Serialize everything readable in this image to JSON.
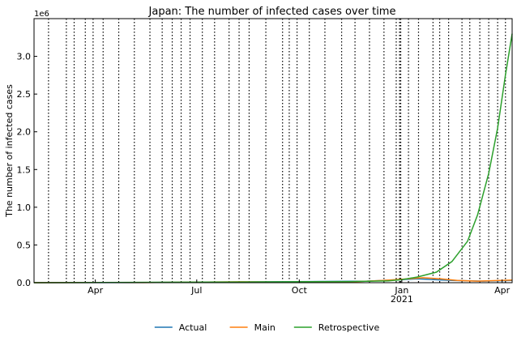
{
  "chart_data": {
    "type": "line",
    "title": "Japan: The number of infected cases over time",
    "ylabel": "The number of infected cases",
    "xlabel": "",
    "y_offset_label": "1e6",
    "ylim": [
      0,
      3.5
    ],
    "xlim": [
      "2020-02-06",
      "2021-04-10"
    ],
    "y_ticks": [
      {
        "value": 0.0,
        "label": "0.0"
      },
      {
        "value": 0.5,
        "label": "0.5"
      },
      {
        "value": 1.0,
        "label": "1.0"
      },
      {
        "value": 1.5,
        "label": "1.5"
      },
      {
        "value": 2.0,
        "label": "2.0"
      },
      {
        "value": 2.5,
        "label": "2.5"
      },
      {
        "value": 3.0,
        "label": "3.0"
      }
    ],
    "x_ticks": [
      {
        "date": "2020-04-01",
        "label": "Apr",
        "label2": ""
      },
      {
        "date": "2020-07-01",
        "label": "Jul",
        "label2": ""
      },
      {
        "date": "2020-10-01",
        "label": "Oct",
        "label2": ""
      },
      {
        "date": "2021-01-01",
        "label": "Jan",
        "label2": "2021"
      },
      {
        "date": "2021-04-01",
        "label": "Apr",
        "label2": ""
      }
    ],
    "change_dates": [
      "2020-02-19",
      "2020-03-06",
      "2020-03-13",
      "2020-03-23",
      "2020-03-30",
      "2020-04-08",
      "2020-04-22",
      "2020-05-06",
      "2020-05-20",
      "2020-05-31",
      "2020-06-09",
      "2020-06-17",
      "2020-06-25",
      "2020-07-06",
      "2020-07-17",
      "2020-07-30",
      "2020-08-08",
      "2020-08-17",
      "2020-09-01",
      "2020-09-16",
      "2020-09-22",
      "2020-09-29",
      "2020-10-10",
      "2020-10-24",
      "2020-11-08",
      "2020-11-20",
      "2020-12-03",
      "2020-12-16",
      "2020-12-27",
      "2020-12-30",
      "2020-12-30",
      "2020-12-31",
      "2020-12-31",
      "2021-01-07",
      "2021-01-16",
      "2021-01-29",
      "2021-02-04",
      "2021-02-12",
      "2021-02-24",
      "2021-03-03",
      "2021-03-12",
      "2021-03-20",
      "2021-03-28",
      "2021-04-04"
    ],
    "series": [
      {
        "name": "Actual",
        "color": "#1f77b4",
        "points": [
          [
            "2020-02-06",
            0.0
          ],
          [
            "2020-05-01",
            0.001
          ],
          [
            "2020-08-15",
            0.01
          ],
          [
            "2020-12-01",
            0.02
          ],
          [
            "2021-01-15",
            0.05
          ],
          [
            "2021-02-15",
            0.03
          ],
          [
            "2021-03-15",
            0.02
          ],
          [
            "2021-04-10",
            0.03
          ]
        ]
      },
      {
        "name": "Main",
        "color": "#ff7f0e",
        "points": [
          [
            "2020-02-06",
            0.0
          ],
          [
            "2020-04-15",
            0.003
          ],
          [
            "2020-05-15",
            0.001
          ],
          [
            "2020-08-10",
            0.012
          ],
          [
            "2020-10-01",
            0.005
          ],
          [
            "2020-11-15",
            0.01
          ],
          [
            "2020-12-15",
            0.03
          ],
          [
            "2021-01-01",
            0.045
          ],
          [
            "2021-01-20",
            0.065
          ],
          [
            "2021-02-05",
            0.05
          ],
          [
            "2021-02-20",
            0.03
          ],
          [
            "2021-03-10",
            0.02
          ],
          [
            "2021-04-10",
            0.035
          ]
        ]
      },
      {
        "name": "Retrospective",
        "color": "#2ca02c",
        "points": [
          [
            "2020-02-06",
            0.0
          ],
          [
            "2020-08-10",
            0.01
          ],
          [
            "2020-11-15",
            0.015
          ],
          [
            "2020-12-20",
            0.025
          ],
          [
            "2021-01-01",
            0.04
          ],
          [
            "2021-01-15",
            0.075
          ],
          [
            "2021-02-01",
            0.14
          ],
          [
            "2021-02-15",
            0.28
          ],
          [
            "2021-03-01",
            0.55
          ],
          [
            "2021-03-10",
            0.9
          ],
          [
            "2021-03-20",
            1.45
          ],
          [
            "2021-03-28",
            2.05
          ],
          [
            "2021-04-04",
            2.75
          ],
          [
            "2021-04-10",
            3.3
          ]
        ]
      }
    ],
    "legend_position": "bottom-center",
    "grid": false
  }
}
